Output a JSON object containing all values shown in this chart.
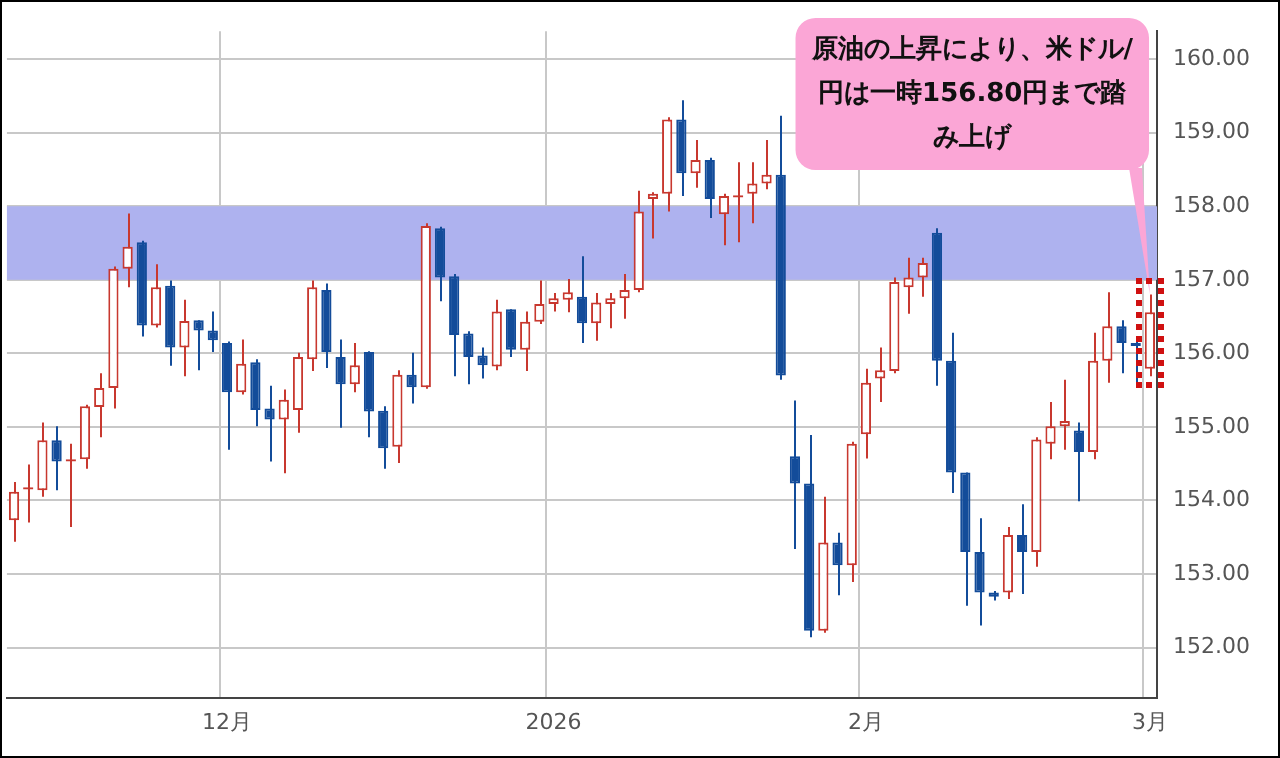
{
  "chart_data": {
    "type": "candlestick",
    "categories": [
      null,
      null,
      null,
      null,
      null,
      null,
      null,
      null,
      null,
      null,
      null,
      null,
      null,
      null,
      null,
      "12月",
      null,
      null,
      null,
      null,
      null,
      null,
      null,
      null,
      null,
      null,
      null,
      null,
      null,
      null,
      null,
      null,
      null,
      null,
      null,
      null,
      null,
      null,
      "2026",
      null,
      null,
      null,
      null,
      null,
      null,
      null,
      null,
      null,
      null,
      null,
      null,
      null,
      null,
      null,
      null,
      null,
      null,
      null,
      null,
      null,
      "2月",
      null,
      null,
      null,
      null,
      null,
      null,
      null,
      null,
      null,
      null,
      null,
      null,
      null,
      null,
      null,
      null,
      null,
      null,
      null,
      "3月"
    ],
    "ohlc": [
      [
        153.73,
        154.25,
        153.44,
        154.12
      ],
      [
        154.15,
        154.49,
        153.7,
        154.18
      ],
      [
        154.14,
        155.06,
        154.05,
        154.82
      ],
      [
        154.82,
        155.01,
        154.14,
        154.53
      ],
      [
        154.53,
        154.77,
        153.64,
        154.56
      ],
      [
        154.56,
        155.3,
        154.43,
        155.28
      ],
      [
        155.27,
        155.73,
        154.86,
        155.53
      ],
      [
        155.53,
        157.18,
        155.25,
        157.15
      ],
      [
        157.15,
        157.9,
        156.9,
        157.45
      ],
      [
        157.51,
        157.53,
        156.23,
        156.38
      ],
      [
        156.38,
        157.21,
        156.35,
        156.9
      ],
      [
        156.92,
        156.99,
        155.83,
        156.08
      ],
      [
        156.08,
        156.73,
        155.69,
        156.44
      ],
      [
        156.45,
        156.45,
        155.77,
        156.31
      ],
      [
        156.31,
        156.57,
        156.02,
        156.18
      ],
      [
        156.14,
        156.16,
        154.69,
        155.47
      ],
      [
        155.47,
        156.19,
        155.44,
        155.86
      ],
      [
        155.88,
        155.92,
        155.01,
        155.23
      ],
      [
        155.25,
        155.56,
        154.53,
        155.1
      ],
      [
        155.1,
        155.51,
        154.37,
        155.37
      ],
      [
        155.23,
        156.01,
        154.92,
        155.95
      ],
      [
        155.92,
        156.99,
        155.76,
        156.9
      ],
      [
        156.86,
        156.95,
        155.8,
        156.02
      ],
      [
        155.95,
        156.19,
        154.99,
        155.58
      ],
      [
        155.58,
        156.14,
        155.47,
        155.84
      ],
      [
        156.02,
        156.03,
        154.86,
        155.21
      ],
      [
        155.22,
        155.28,
        154.43,
        154.71
      ],
      [
        154.73,
        155.77,
        154.51,
        155.71
      ],
      [
        155.71,
        156.01,
        155.32,
        155.54
      ],
      [
        155.54,
        157.77,
        155.52,
        157.73
      ],
      [
        157.7,
        157.72,
        156.71,
        157.03
      ],
      [
        157.05,
        157.08,
        155.69,
        156.25
      ],
      [
        156.27,
        156.3,
        155.58,
        155.95
      ],
      [
        155.97,
        156.08,
        155.66,
        155.84
      ],
      [
        155.82,
        156.73,
        155.77,
        156.57
      ],
      [
        156.6,
        156.6,
        155.95,
        156.05
      ],
      [
        156.05,
        156.57,
        155.76,
        156.43
      ],
      [
        156.43,
        156.99,
        156.4,
        156.67
      ],
      [
        156.67,
        156.82,
        156.57,
        156.75
      ],
      [
        156.73,
        157.01,
        156.56,
        156.83
      ],
      [
        156.77,
        157.32,
        156.14,
        156.41
      ],
      [
        156.41,
        156.82,
        156.17,
        156.69
      ],
      [
        156.67,
        156.82,
        156.34,
        156.75
      ],
      [
        156.75,
        157.08,
        156.47,
        156.86
      ],
      [
        156.86,
        158.21,
        156.83,
        157.93
      ],
      [
        158.1,
        158.19,
        157.56,
        158.17
      ],
      [
        158.17,
        159.21,
        157.93,
        159.18
      ],
      [
        159.18,
        159.44,
        158.14,
        158.45
      ],
      [
        158.45,
        158.9,
        158.25,
        158.63
      ],
      [
        158.63,
        158.66,
        157.84,
        158.1
      ],
      [
        157.89,
        158.17,
        157.47,
        158.14
      ],
      [
        158.12,
        158.6,
        157.51,
        158.15
      ],
      [
        158.17,
        158.6,
        157.77,
        158.31
      ],
      [
        158.31,
        158.9,
        158.23,
        158.43
      ],
      [
        158.43,
        159.23,
        155.64,
        155.7
      ],
      [
        154.6,
        155.36,
        153.34,
        154.23
      ],
      [
        154.23,
        154.89,
        152.14,
        152.23
      ],
      [
        152.23,
        154.05,
        152.2,
        153.43
      ],
      [
        153.43,
        153.56,
        152.71,
        153.12
      ],
      [
        153.12,
        154.8,
        152.89,
        154.77
      ],
      [
        154.9,
        155.79,
        154.57,
        155.6
      ],
      [
        155.66,
        156.08,
        155.34,
        155.77
      ],
      [
        155.76,
        157.03,
        155.73,
        156.97
      ],
      [
        156.9,
        157.3,
        156.54,
        157.03
      ],
      [
        157.03,
        157.3,
        156.77,
        157.23
      ],
      [
        157.64,
        157.7,
        155.56,
        155.9
      ],
      [
        155.9,
        156.28,
        154.1,
        154.38
      ],
      [
        154.38,
        154.38,
        152.57,
        153.3
      ],
      [
        153.3,
        153.76,
        152.3,
        152.75
      ],
      [
        152.75,
        152.77,
        152.64,
        152.69
      ],
      [
        152.75,
        153.64,
        152.66,
        153.53
      ],
      [
        153.53,
        153.95,
        152.73,
        153.3
      ],
      [
        153.3,
        154.86,
        153.1,
        154.83
      ],
      [
        154.77,
        155.34,
        154.56,
        155.01
      ],
      [
        155.01,
        155.64,
        154.69,
        155.08
      ],
      [
        154.95,
        155.06,
        153.99,
        154.66
      ],
      [
        154.66,
        156.28,
        154.56,
        155.9
      ],
      [
        155.9,
        156.83,
        155.6,
        156.37
      ],
      [
        156.37,
        156.45,
        155.73,
        156.14
      ],
      [
        156.14,
        156.21,
        155.56,
        156.1
      ],
      [
        155.79,
        156.8,
        155.69,
        156.56
      ]
    ],
    "ylim": [
      151.32,
      160.38
    ],
    "yticks": [
      {
        "value": 152,
        "label": "152.00"
      },
      {
        "value": 153,
        "label": "153.00"
      },
      {
        "value": 154,
        "label": "154.00"
      },
      {
        "value": 155,
        "label": "155.00"
      },
      {
        "value": 156,
        "label": "156.00"
      },
      {
        "value": 157,
        "label": "157.00"
      },
      {
        "value": 158,
        "label": "158.00"
      },
      {
        "value": 159,
        "label": "159.00"
      },
      {
        "value": 160,
        "label": "160.00"
      }
    ],
    "bands": [
      {
        "axis": "y",
        "from": 157,
        "to": 158,
        "color": "#aeb2ef"
      }
    ],
    "annotations": [
      {
        "text": "原油の上昇により、米ドル/円は一時156.80円まで踏み上げ",
        "x": "3月",
        "y": 156.8
      }
    ],
    "grid": true,
    "legend": false
  }
}
